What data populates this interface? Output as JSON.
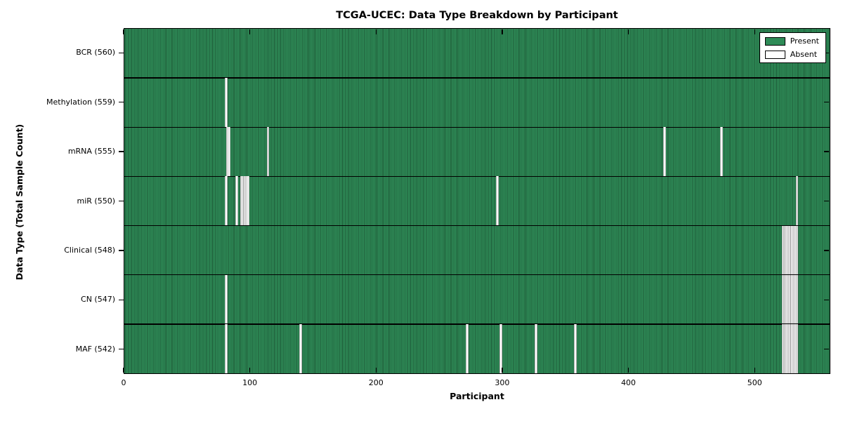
{
  "figure": {
    "title": "TCGA-UCEC: Data Type Breakdown by Participant"
  },
  "chart_data": {
    "type": "heatmap",
    "title": "TCGA-UCEC: Data Type Breakdown by Participant",
    "xlabel": "Participant",
    "ylabel": "Data Type (Total Sample Count)",
    "n_participants": 560,
    "x_ticks": [
      0,
      100,
      200,
      300,
      400,
      500
    ],
    "xlim": [
      0,
      560
    ],
    "grid": false,
    "legend_position": "upper right",
    "legend": [
      {
        "label": "Present",
        "color": "#2e8b57"
      },
      {
        "label": "Absent",
        "color": "#ffffff"
      }
    ],
    "colors": {
      "present": "#2e8b57",
      "present_hatch": "#1d5937",
      "absent": "#ffffff",
      "absent_edge": "#b4b4b4",
      "frame": "#000000"
    },
    "rows": [
      {
        "label": "BCR (560)",
        "total": 560,
        "absent": []
      },
      {
        "label": "Methylation (559)",
        "total": 559,
        "absent": [
          80
        ]
      },
      {
        "label": "mRNA (555)",
        "total": 555,
        "absent": [
          81,
          82,
          113,
          428,
          473
        ]
      },
      {
        "label": "miR (550)",
        "total": 550,
        "absent": [
          80,
          88,
          92,
          93,
          94,
          95,
          96,
          97,
          295,
          533
        ]
      },
      {
        "label": "Clinical (548)",
        "total": 548,
        "absent": [
          522,
          523,
          524,
          525,
          526,
          527,
          528,
          529,
          530,
          531,
          532,
          533
        ]
      },
      {
        "label": "CN (547)",
        "total": 547,
        "absent": [
          80,
          522,
          523,
          524,
          525,
          526,
          527,
          528,
          529,
          530,
          531,
          532,
          533
        ]
      },
      {
        "label": "MAF (542)",
        "total": 542,
        "absent": [
          80,
          139,
          271,
          298,
          326,
          357,
          522,
          523,
          524,
          525,
          526,
          527,
          528,
          529,
          530,
          531,
          532,
          533
        ]
      }
    ]
  }
}
